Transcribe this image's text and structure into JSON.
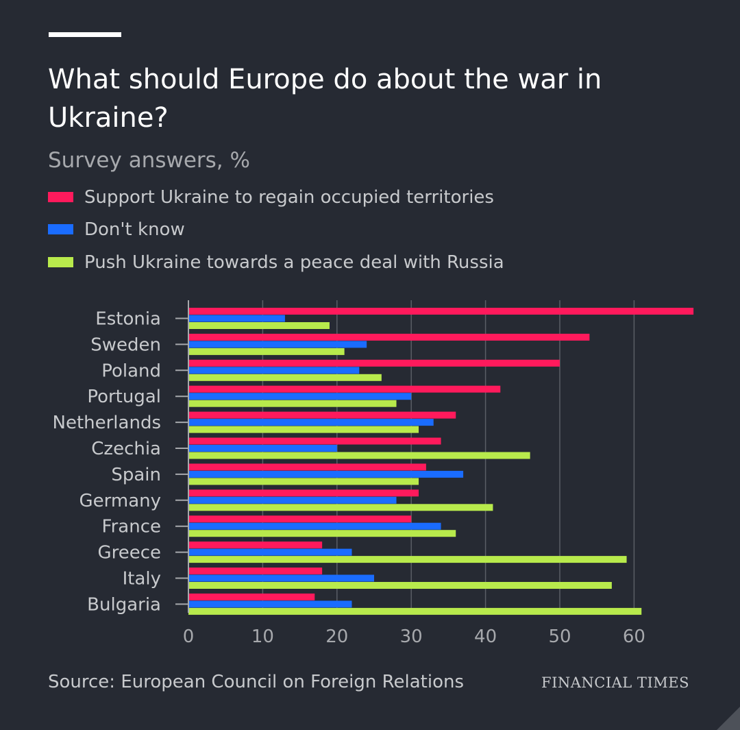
{
  "header": {
    "title": "What should Europe do about the war in Ukraine?",
    "subtitle": "Survey answers, %"
  },
  "legend": {
    "items": [
      {
        "label": "Support Ukraine to regain occupied territories",
        "color": "#ff1a5c"
      },
      {
        "label": "Don't know",
        "color": "#1a6cff"
      },
      {
        "label": "Push Ukraine towards a peace deal with Russia",
        "color": "#b8ea4c"
      }
    ]
  },
  "chart_data": {
    "type": "bar",
    "orientation": "horizontal",
    "categories": [
      "Estonia",
      "Sweden",
      "Poland",
      "Portugal",
      "Netherlands",
      "Czechia",
      "Spain",
      "Germany",
      "France",
      "Greece",
      "Italy",
      "Bulgaria"
    ],
    "series": [
      {
        "name": "Support Ukraine to regain occupied territories",
        "color": "#ff1a5c",
        "values": [
          68,
          54,
          50,
          42,
          36,
          34,
          32,
          31,
          30,
          18,
          18,
          17
        ]
      },
      {
        "name": "Don't know",
        "color": "#1a6cff",
        "values": [
          13,
          24,
          23,
          30,
          33,
          20,
          37,
          28,
          34,
          22,
          25,
          22
        ]
      },
      {
        "name": "Push Ukraine towards a peace deal with Russia",
        "color": "#b8ea4c",
        "values": [
          19,
          21,
          26,
          28,
          31,
          46,
          31,
          41,
          36,
          59,
          57,
          61
        ]
      }
    ],
    "xlim": [
      0,
      68
    ],
    "xticks": [
      0,
      10,
      20,
      30,
      40,
      50,
      60
    ],
    "grid": true
  },
  "footer": {
    "source": "Source: European Council on Foreign Relations",
    "brand": "FINANCIAL TIMES"
  }
}
